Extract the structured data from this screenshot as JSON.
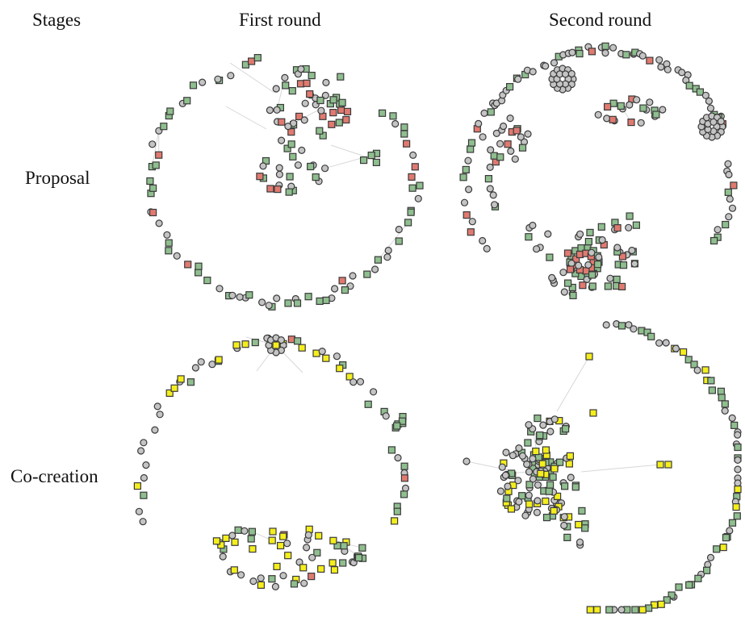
{
  "header": {
    "stages_label": "Stages",
    "columns": [
      "First round",
      "Second round"
    ]
  },
  "rows": [
    "Proposal",
    "Co-creation"
  ],
  "colors": {
    "circle": "#c4c4c4",
    "green": "#8fbe8f",
    "red": "#e07a70",
    "yellow": "#f4ee1d",
    "outline": "#3a3a3a"
  }
}
